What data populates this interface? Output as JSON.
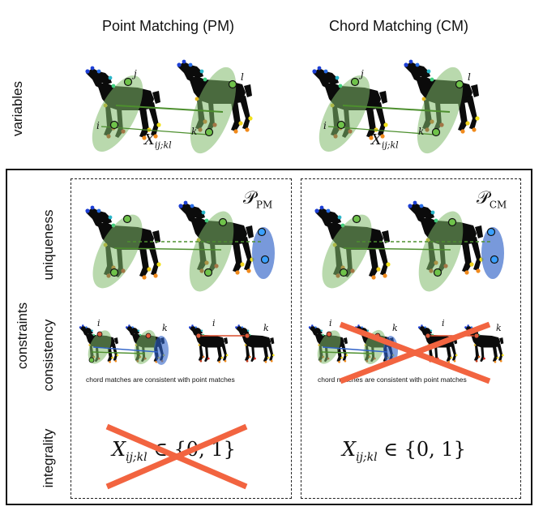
{
  "columns": {
    "pm_title": "Point Matching (PM)",
    "cm_title": "Chord Matching (CM)"
  },
  "row_labels": {
    "variables": "variables",
    "constraints": "constraints",
    "uniqueness": "uniqueness",
    "consistency": "consistency",
    "integrality": "integrality"
  },
  "variables_panel": {
    "point_labels": {
      "i": "i",
      "j": "j",
      "k": "k",
      "l": "l"
    },
    "variable_symbol": "X",
    "variable_subscript": "ij;kl"
  },
  "panels": {
    "pm_polytope": "𝒫",
    "pm_polytope_sub": "PM",
    "cm_polytope": "𝒫",
    "cm_polytope_sub": "CM"
  },
  "consistency": {
    "pm_note": "chord matches are consistent with point matches",
    "cm_note": "chord matches are consistent with point matches",
    "labels": {
      "i": "i",
      "k": "k"
    }
  },
  "integrality": {
    "pm_formula": "X",
    "pm_sub": "ij;kl",
    "pm_rest": " ∈ {0, 1}",
    "cm_formula": "X",
    "cm_sub": "ij;kl",
    "cm_rest": " ∈ {0, 1}"
  },
  "colors": {
    "green_ellipse": "#7fb96a",
    "blue_ellipse": "#2f62c8",
    "cross": "#f26440",
    "dog": "#0b0b0b",
    "match_line": "#4d8f2e"
  }
}
